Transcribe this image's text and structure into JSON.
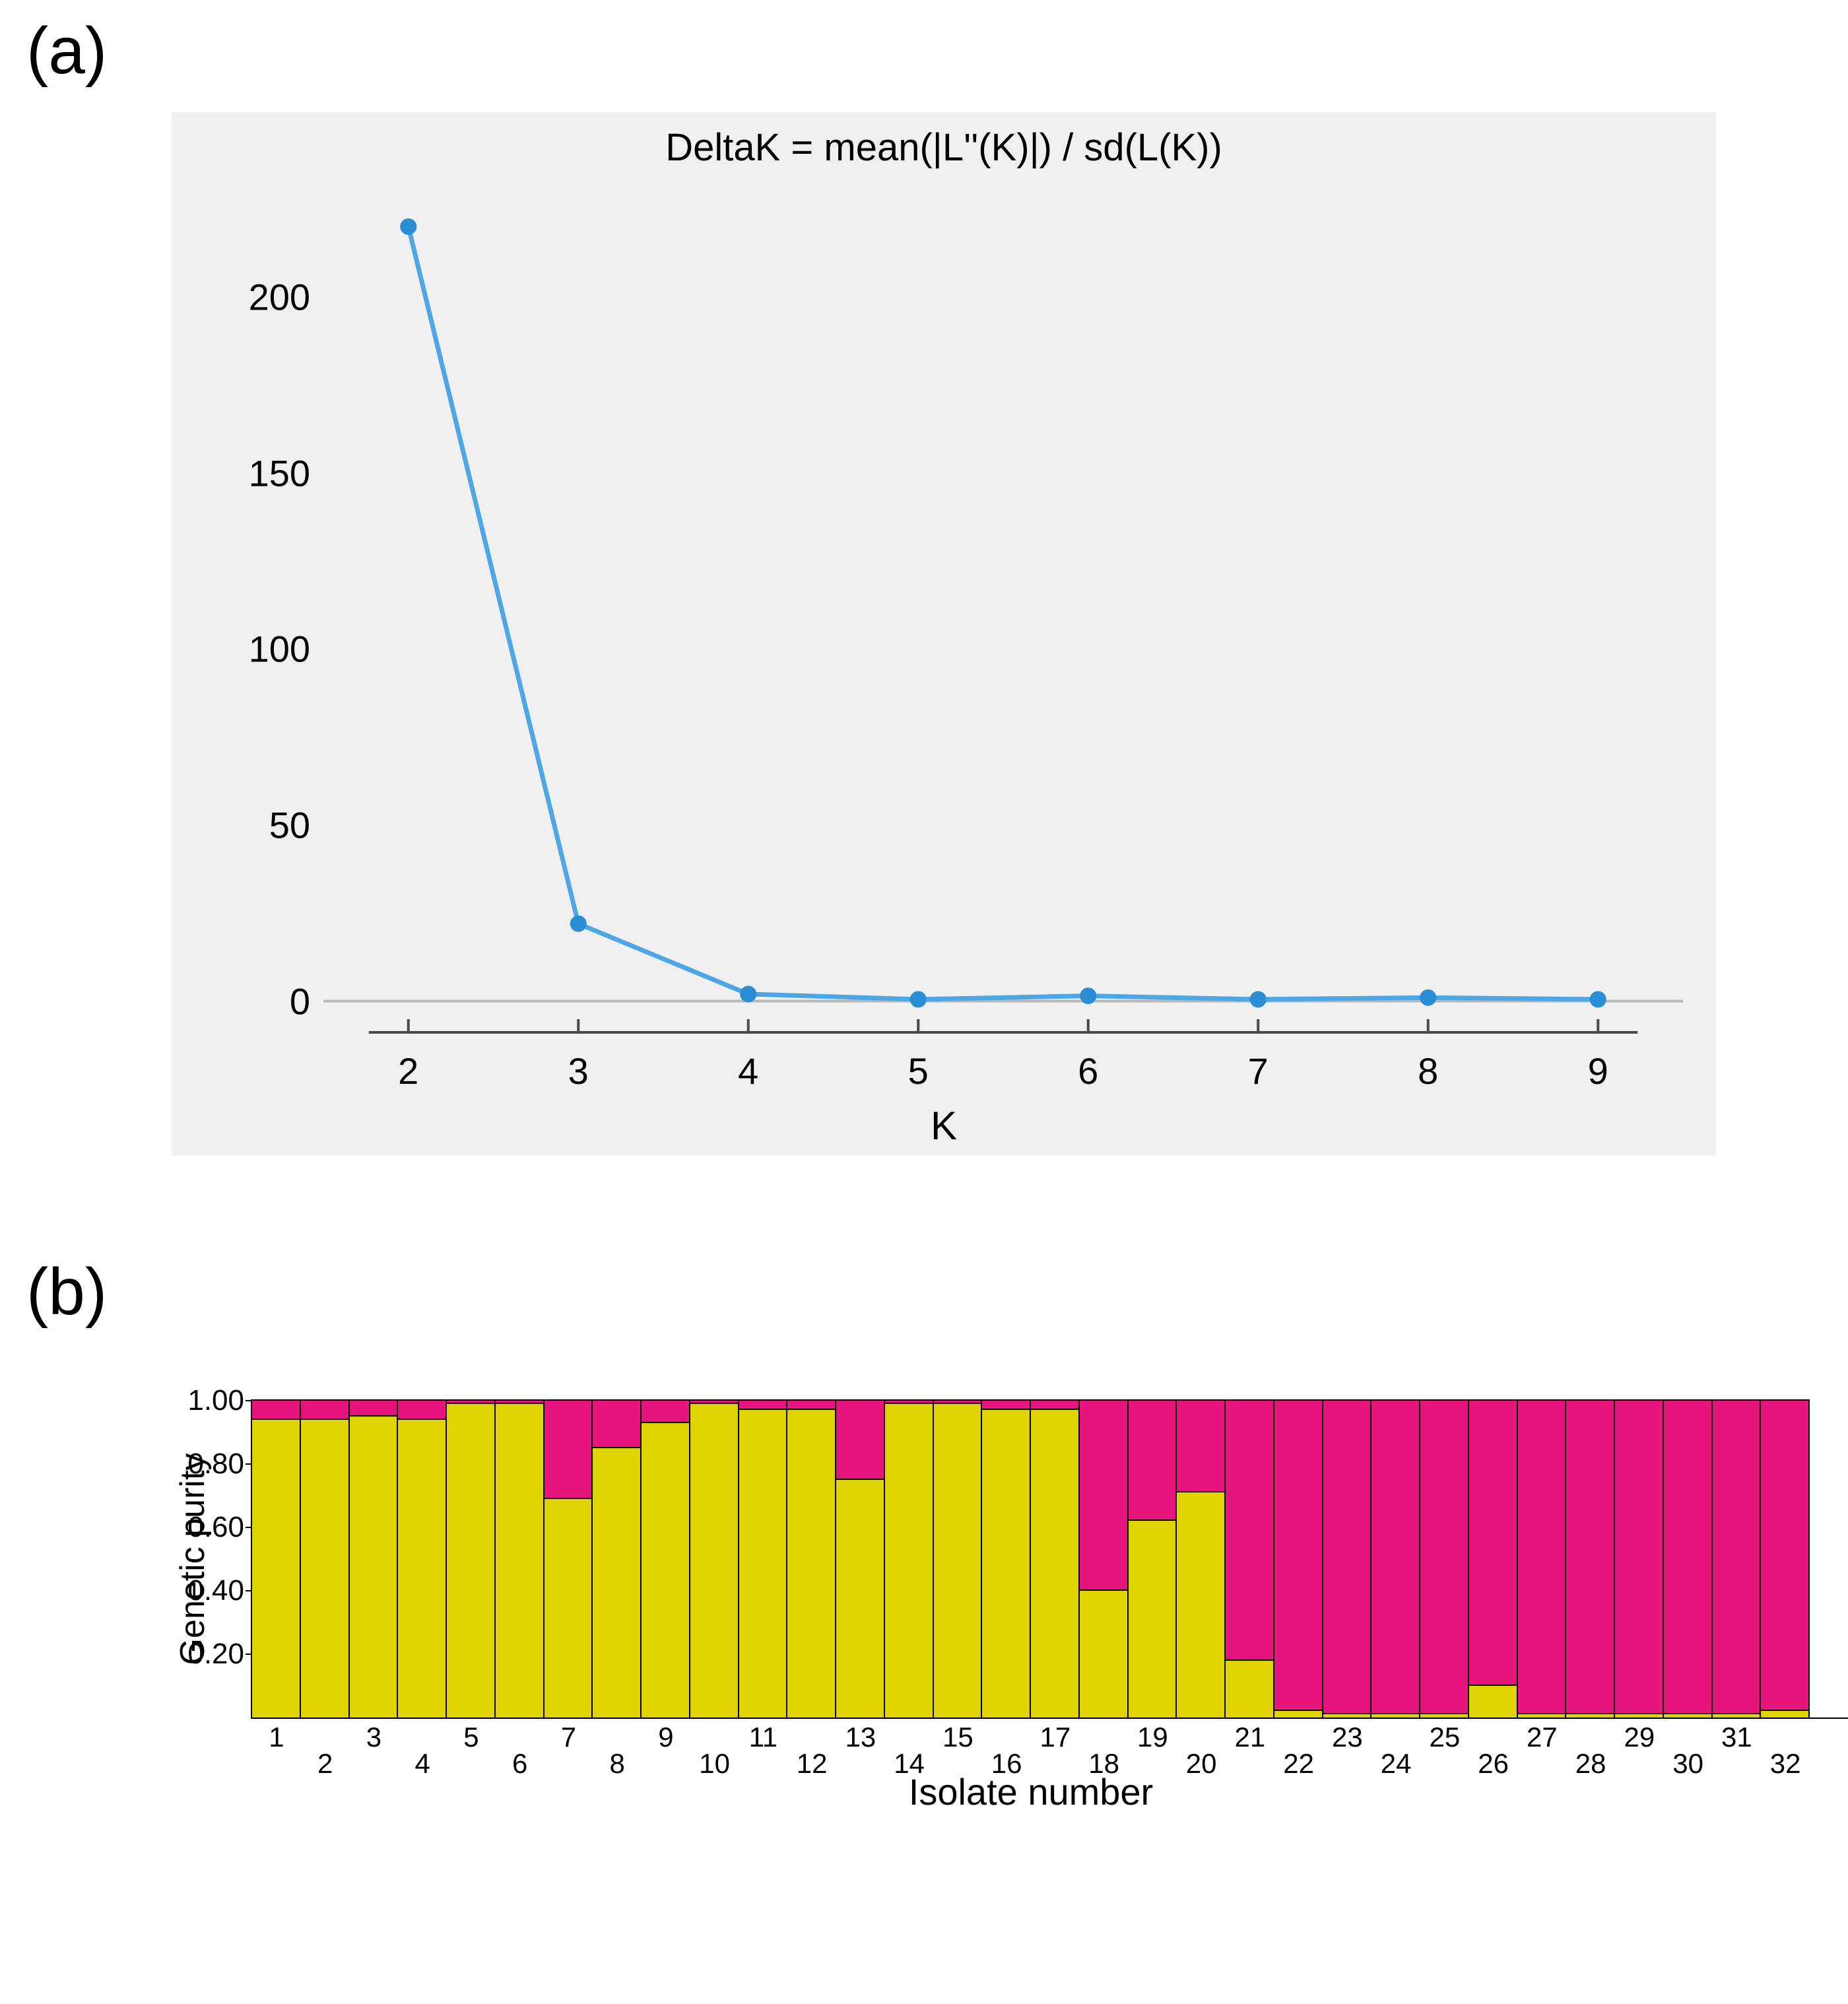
{
  "panel_a_label": "(a)",
  "panel_b_label": "(b)",
  "chart_a": {
    "type": "line",
    "title": "DeltaK = mean(|L''(K)|) / sd(L(K))",
    "xlabel": "K",
    "x": [
      2,
      3,
      4,
      5,
      6,
      7,
      8,
      9
    ],
    "y": [
      220,
      22,
      2,
      0.5,
      1.5,
      0.5,
      1.0,
      0.5
    ],
    "xlim": [
      1.5,
      9.5
    ],
    "ylim": [
      -10,
      230
    ],
    "xticks": [
      2,
      3,
      4,
      5,
      6,
      7,
      8,
      9
    ],
    "yticks": [
      0,
      50,
      100,
      150,
      200
    ],
    "line_color": "#4da6e6",
    "marker_color": "#2b8ed4",
    "marker_radius": 12,
    "line_width": 7,
    "zero_line_color": "#b8b8b8",
    "axis_color": "#4a4a4a",
    "background_color": "#f0f0f0",
    "label_fontsize": 56,
    "title_fontsize": 58,
    "axis_label_fontsize": 60
  },
  "chart_b": {
    "type": "stacked-bar",
    "ylabel": "Genetic purity",
    "xlabel": "Isolate number",
    "ylim": [
      0,
      1.0
    ],
    "yticks": [
      0.2,
      0.4,
      0.6,
      0.8,
      1.0
    ],
    "ytick_labels": [
      "0.20",
      "0.40",
      "0.60",
      "0.80",
      "1.00"
    ],
    "xticks": [
      1,
      2,
      3,
      4,
      5,
      6,
      7,
      8,
      9,
      10,
      11,
      12,
      13,
      14,
      15,
      16,
      17,
      18,
      19,
      20,
      21,
      22,
      23,
      24,
      25,
      26,
      27,
      28,
      29,
      30,
      31,
      32
    ],
    "n_bars": 32,
    "yellow_values": [
      0.94,
      0.94,
      0.95,
      0.94,
      0.99,
      0.99,
      0.69,
      0.85,
      0.93,
      0.99,
      0.97,
      0.97,
      0.75,
      0.99,
      0.99,
      0.97,
      0.97,
      0.4,
      0.62,
      0.71,
      0.18,
      0.02,
      0.01,
      0.01,
      0.01,
      0.1,
      0.01,
      0.01,
      0.01,
      0.01,
      0.01,
      0.02
    ],
    "color_yellow": "#e0d400",
    "color_pink": "#e6157e",
    "border_color": "#000000",
    "background_color": "#ffffff",
    "label_fontsize": 44,
    "axis_label_fontsize": 54,
    "xtick_fontsize": 42
  }
}
